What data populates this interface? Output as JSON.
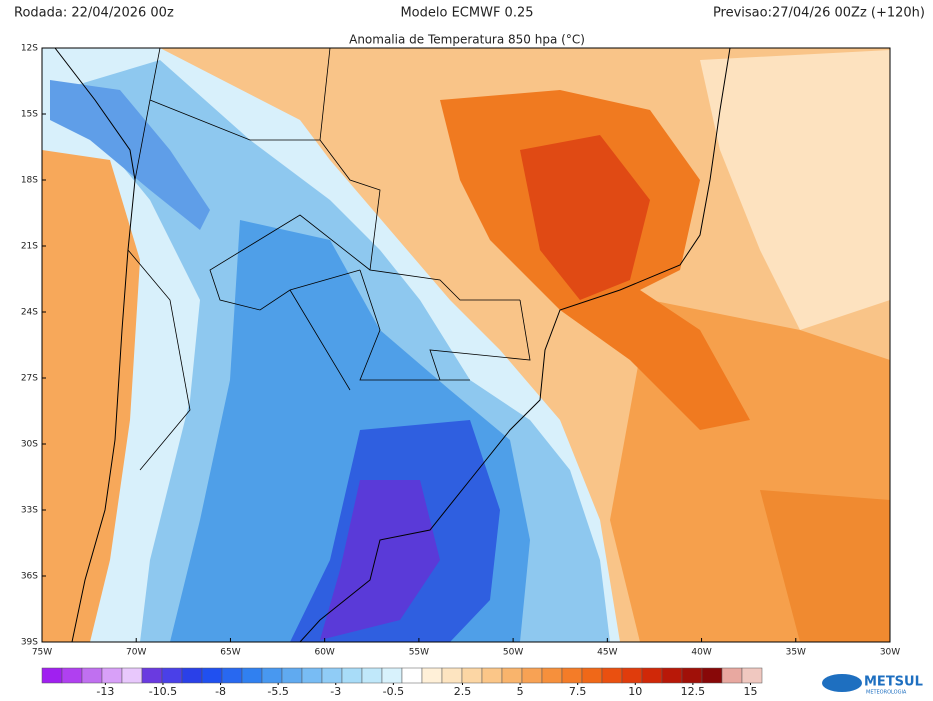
{
  "header": {
    "run": "Rodada: 22/04/2026 00z",
    "model": "Modelo ECMWF 0.25",
    "forecast": "Previsao:27/04/26 00Zz (+120h)"
  },
  "map": {
    "title": "Anomalia de Temperatura 850 hpa (°C)",
    "lonlim": [
      -75,
      -30
    ],
    "latlim": [
      -12,
      -39
    ],
    "lonticks": [
      {
        "value": -75,
        "label": "75W"
      },
      {
        "value": -70,
        "label": "70W"
      },
      {
        "value": -65,
        "label": "65W"
      },
      {
        "value": -60,
        "label": "60W"
      },
      {
        "value": -55,
        "label": "55W"
      },
      {
        "value": -50,
        "label": "50W"
      },
      {
        "value": -45,
        "label": "45W"
      },
      {
        "value": -40,
        "label": "40W"
      },
      {
        "value": -35,
        "label": "35W"
      },
      {
        "value": -30,
        "label": "30W"
      }
    ],
    "latticks": [
      {
        "value": -12,
        "label": "12S"
      },
      {
        "value": -15,
        "label": "15S"
      },
      {
        "value": -18,
        "label": "18S"
      },
      {
        "value": -21,
        "label": "21S"
      },
      {
        "value": -24,
        "label": "24S"
      },
      {
        "value": -27,
        "label": "27S"
      },
      {
        "value": -30,
        "label": "30S"
      },
      {
        "value": -33,
        "label": "33S"
      },
      {
        "value": -36,
        "label": "36S"
      },
      {
        "value": -39,
        "label": "39S"
      }
    ]
  },
  "colorbar": {
    "lim": [
      -15.75,
      15.5
    ],
    "ticks": [
      -13,
      -10.5,
      -8,
      -5.5,
      -3,
      -0.5,
      2.5,
      5,
      7.5,
      10,
      12.5,
      15
    ],
    "colors": [
      "#a020f0",
      "#b040f0",
      "#c070f0",
      "#d8a0f8",
      "#e8c8fc",
      "#6a3ae0",
      "#4a40e8",
      "#2a40e8",
      "#2050f0",
      "#2868f0",
      "#3080f0",
      "#4898f0",
      "#60aaf0",
      "#78bcf4",
      "#90ccf6",
      "#a8dcf8",
      "#c0e8fa",
      "#d8f2fc",
      "#ffffff",
      "#fff0d8",
      "#fde4c0",
      "#fcd6a4",
      "#fbc688",
      "#f9b46c",
      "#f8a254",
      "#f6903c",
      "#f47c28",
      "#f06818",
      "#ea5010",
      "#e03c0c",
      "#d02808",
      "#b81808",
      "#a01008",
      "#880808",
      "#e8a8a0",
      "#f0c8c0"
    ]
  },
  "logo": {
    "name": "METSUL",
    "sub": "METEOROLOGIA"
  }
}
